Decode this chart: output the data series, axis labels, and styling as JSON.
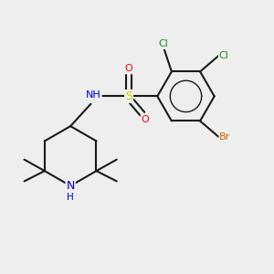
{
  "background_color": "#eeeeee",
  "bond_color": "#1a1a1a",
  "atom_colors": {
    "Cl": "#228B22",
    "Br": "#cc6600",
    "S": "#cccc00",
    "O": "#ff0000",
    "N": "#0000cc",
    "H": "#444444",
    "C": "#1a1a1a"
  },
  "figsize": [
    3.0,
    3.0
  ],
  "dpi": 100
}
